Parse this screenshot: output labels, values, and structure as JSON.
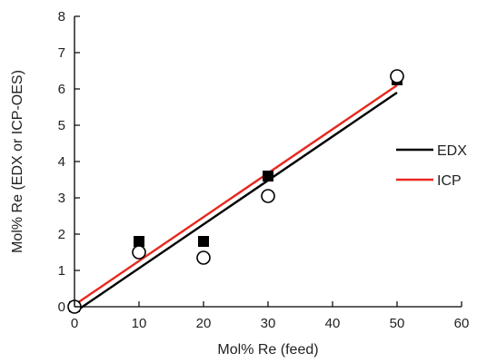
{
  "chart_data": {
    "type": "scatter",
    "xlabel": "Mol% Re (feed)",
    "ylabel": "Mol% Re (EDX or ICP-OES)",
    "xlim": [
      0,
      60
    ],
    "ylim": [
      0,
      8
    ],
    "x_ticks": [
      0,
      10,
      20,
      30,
      40,
      50,
      60
    ],
    "y_ticks": [
      0,
      1,
      2,
      3,
      4,
      5,
      6,
      7,
      8
    ],
    "grid": false,
    "legend_position": "right",
    "series": [
      {
        "name": "EDX",
        "marker": "filled-square",
        "color": "#000000",
        "x": [
          0,
          10,
          20,
          30,
          50
        ],
        "y": [
          0.0,
          1.8,
          1.8,
          3.6,
          6.25
        ],
        "fit_line": {
          "x": [
            0,
            50
          ],
          "y": [
            -0.15,
            5.9
          ]
        }
      },
      {
        "name": "ICP",
        "marker": "open-circle",
        "color": "#e8281e",
        "marker_color": "#000000",
        "x": [
          0,
          10,
          20,
          30,
          50
        ],
        "y": [
          0.0,
          1.5,
          1.35,
          3.05,
          6.35
        ],
        "fit_line": {
          "x": [
            0,
            50
          ],
          "y": [
            0.05,
            6.1
          ]
        }
      }
    ]
  }
}
